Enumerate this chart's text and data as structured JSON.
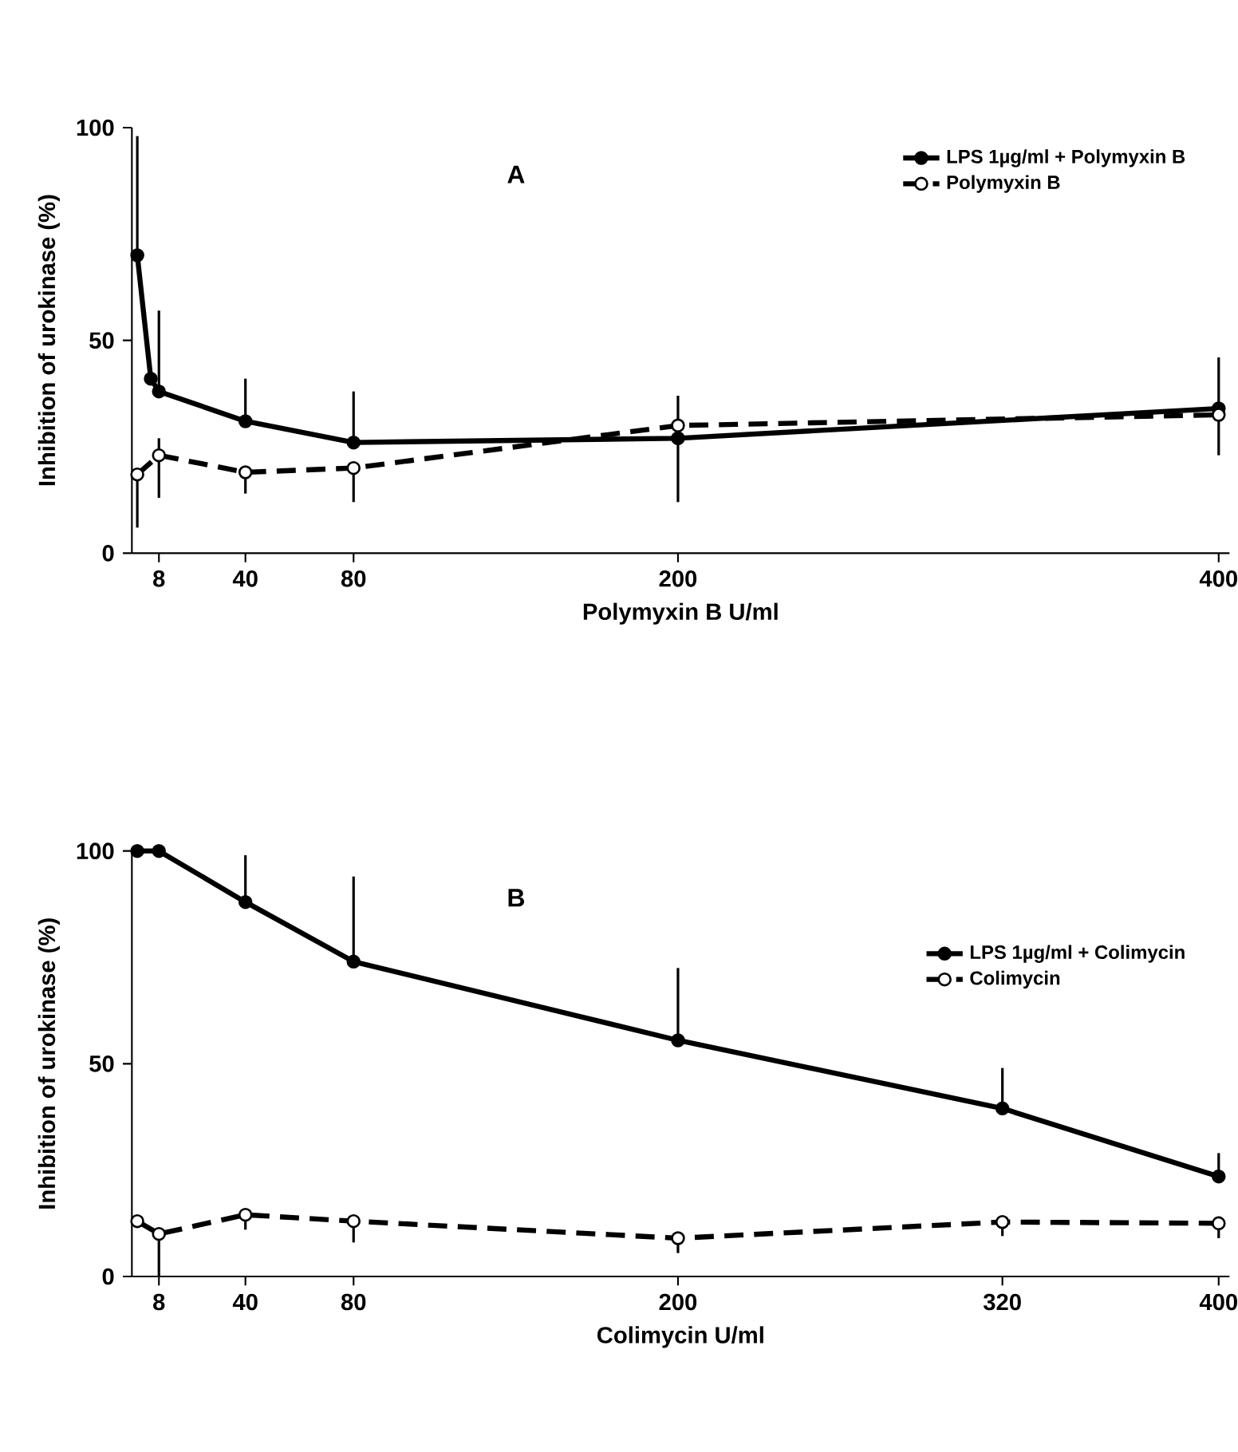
{
  "chart_data": [
    {
      "type": "line",
      "title": "A",
      "xlabel": "Polymyxin B  U/ml",
      "ylabel": "Inhibition of urokinase (%)",
      "xlim": [
        -2,
        404
      ],
      "xticks": [
        8,
        40,
        80,
        200,
        400
      ],
      "ylim": [
        0,
        100
      ],
      "yticks": [
        0,
        50,
        100
      ],
      "marker": "circle",
      "legend": "top right",
      "grid": false,
      "series": [
        {
          "name": "LPS 1µg/ml + Polymyxin B",
          "color": "#000000",
          "line_style": "solid",
          "x": [
            0,
            5,
            8,
            40,
            80,
            200,
            400
          ],
          "values": [
            70,
            41,
            38,
            31,
            26,
            27,
            34
          ],
          "errors": [
            [
              70,
              98
            ],
            null,
            [
              38,
              57
            ],
            [
              31,
              41
            ],
            [
              26,
              38
            ],
            [
              12,
              37
            ],
            [
              23,
              46
            ]
          ]
        },
        {
          "name": "Polymyxin B",
          "color": "#000000",
          "line_style": "dashed",
          "x": [
            0,
            8,
            40,
            80,
            200,
            400
          ],
          "values": [
            18.5,
            23,
            19,
            20,
            30,
            32.5
          ],
          "errors": [
            [
              6,
              18.5
            ],
            [
              13,
              27
            ],
            [
              14,
              20
            ],
            [
              12,
              20
            ],
            null,
            null
          ]
        }
      ]
    },
    {
      "type": "line",
      "title": "B",
      "xlabel": "Colimycin  U/ml",
      "ylabel": "Inhibition of urokinase (%)",
      "xlim": [
        -2,
        404
      ],
      "xticks": [
        8,
        40,
        80,
        200,
        320,
        400
      ],
      "ylim": [
        0,
        100
      ],
      "yticks": [
        0,
        50,
        100
      ],
      "marker": "circle",
      "legend": "top right",
      "grid": false,
      "series": [
        {
          "name": "LPS 1µg/ml + Colimycin",
          "color": "#000000",
          "line_style": "solid",
          "x": [
            0,
            8,
            40,
            80,
            200,
            320,
            400
          ],
          "values": [
            100,
            100,
            88,
            74,
            55.5,
            39.5,
            23.5
          ],
          "errors": [
            null,
            null,
            [
              88,
              99
            ],
            [
              74,
              94
            ],
            [
              55.5,
              72.5
            ],
            [
              39.5,
              49
            ],
            [
              23.5,
              29
            ]
          ]
        },
        {
          "name": "Colimycin",
          "color": "#000000",
          "line_style": "dashed",
          "x": [
            0,
            8,
            40,
            80,
            200,
            320,
            400
          ],
          "values": [
            13,
            10,
            14.5,
            13,
            9,
            12.8,
            12.5
          ],
          "errors": [
            null,
            [
              0,
              10
            ],
            [
              11,
              14.5
            ],
            [
              8,
              13
            ],
            [
              5.5,
              9
            ],
            [
              9.5,
              12.8
            ],
            [
              9,
              12.5
            ]
          ]
        }
      ]
    }
  ]
}
